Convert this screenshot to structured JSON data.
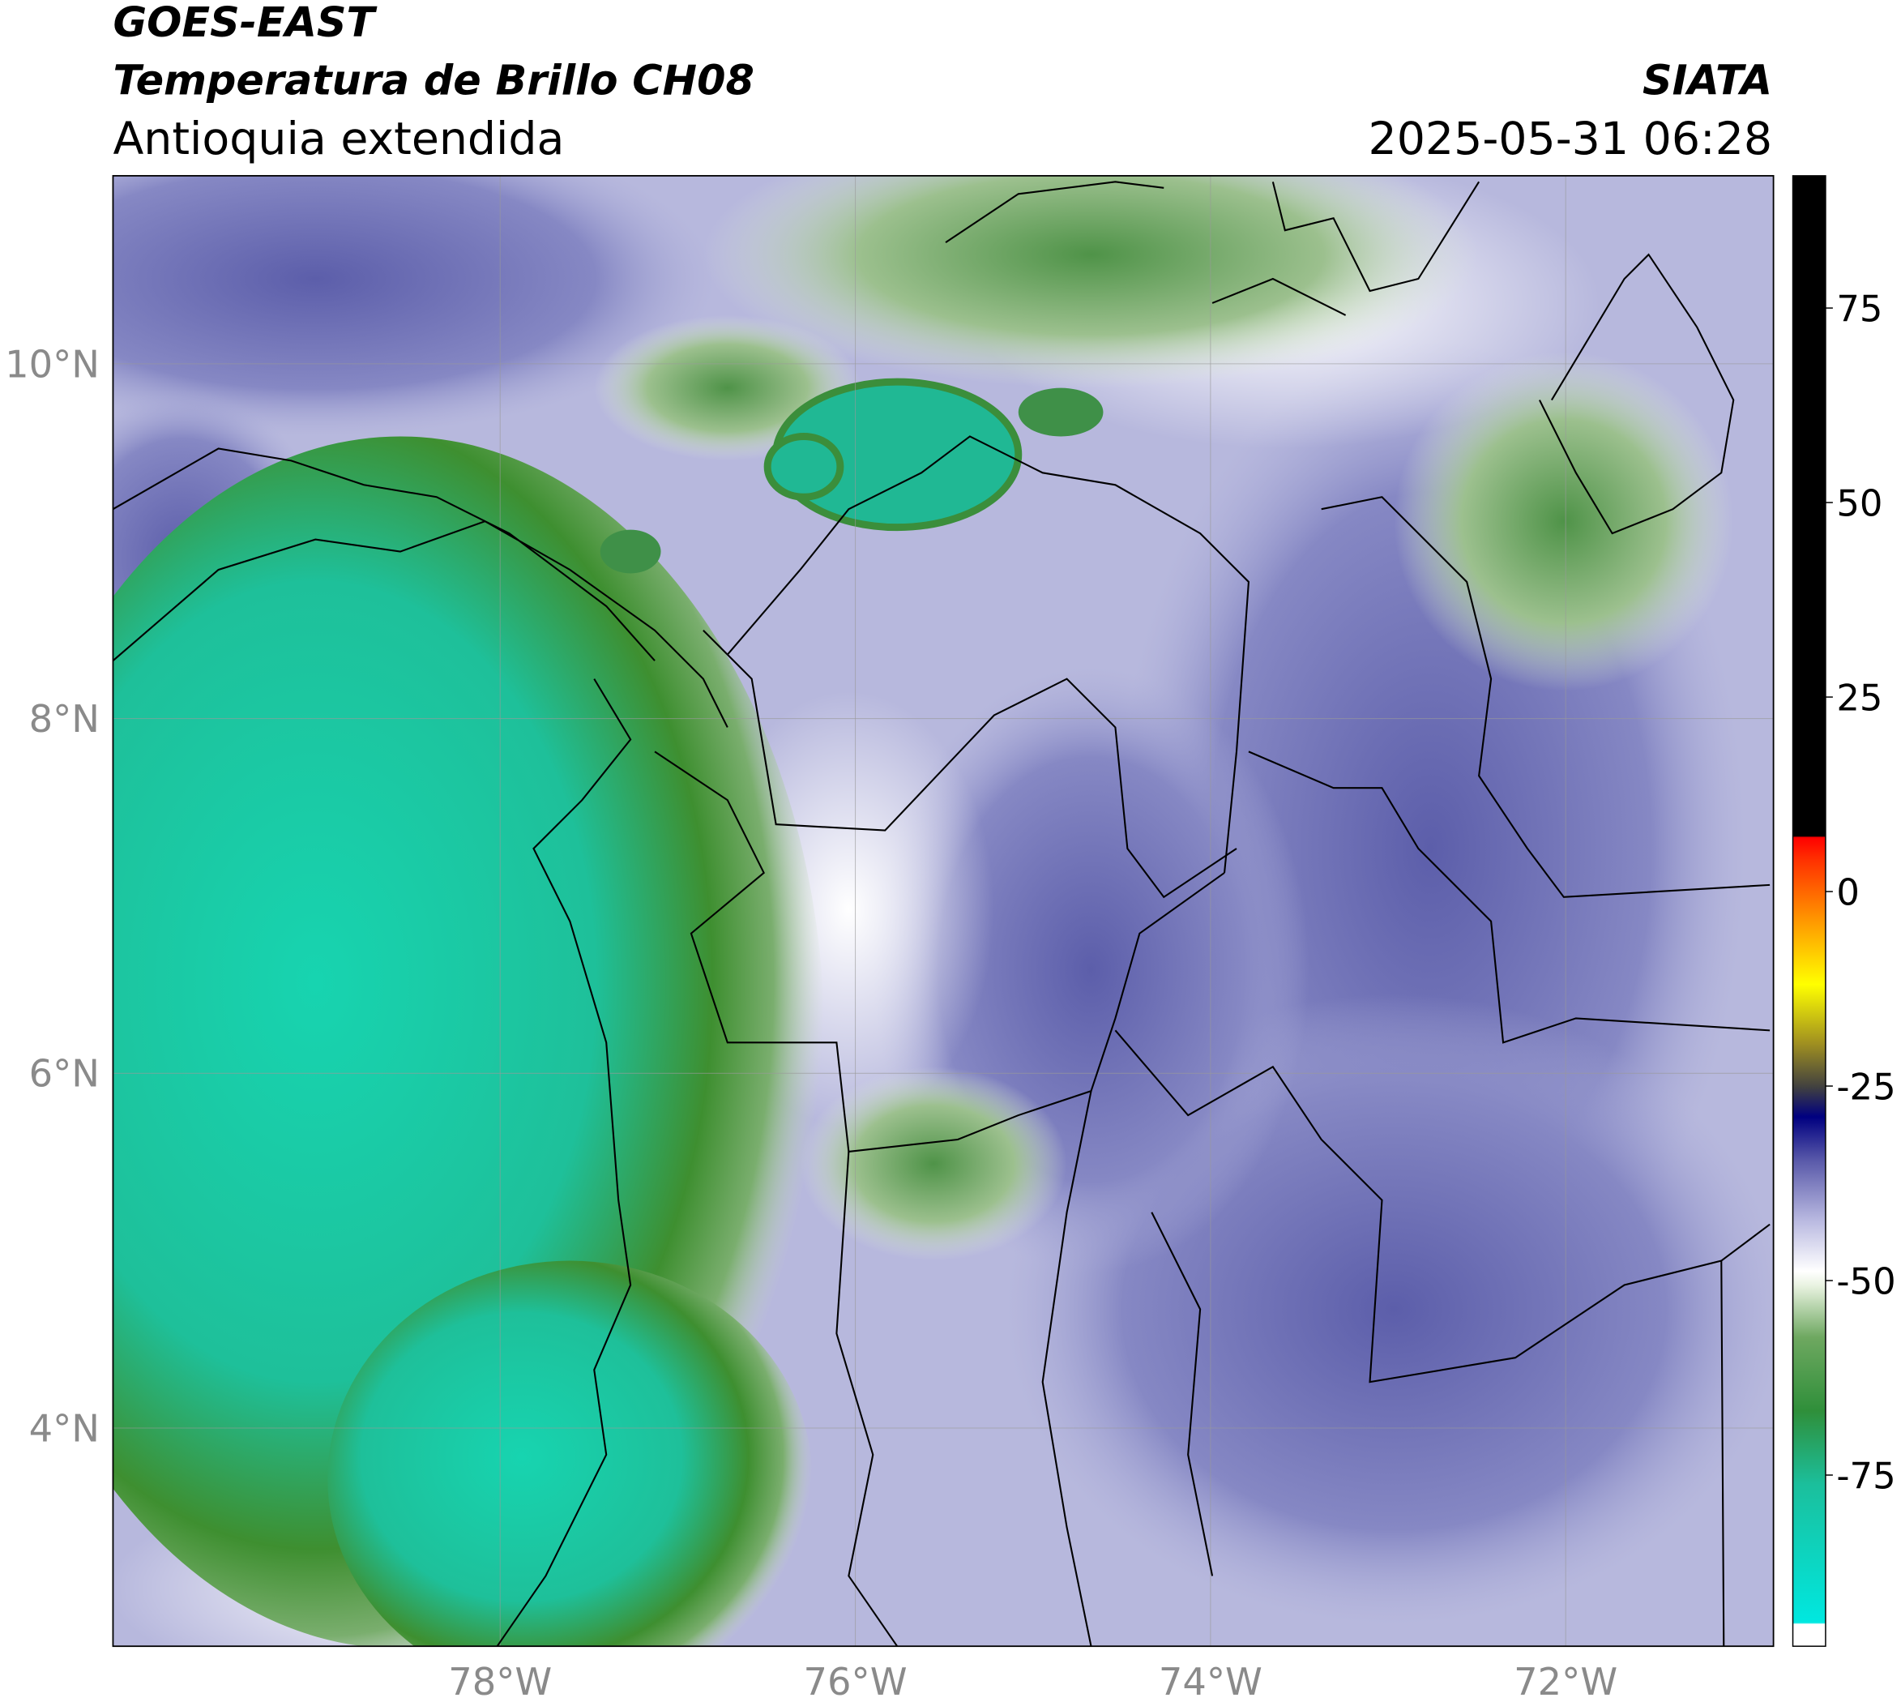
{
  "header": {
    "title": "GOES-EAST",
    "subtitle": "Temperatura de Brillo CH08",
    "region": "Antioquia extendida",
    "source": "SIATA",
    "timestamp": "2025-05-31 06:28"
  },
  "map": {
    "xlim": [
      -80.18,
      -70.83
    ],
    "ylim": [
      2.77,
      11.06
    ],
    "xticks": [
      {
        "value": -78,
        "label": "78°W"
      },
      {
        "value": -76,
        "label": "76°W"
      },
      {
        "value": -74,
        "label": "74°W"
      },
      {
        "value": -72,
        "label": "72°W"
      }
    ],
    "yticks": [
      {
        "value": 10,
        "label": "10°N"
      },
      {
        "value": 8,
        "label": "8°N"
      },
      {
        "value": 6,
        "label": "6°N"
      },
      {
        "value": 4,
        "label": "4°N"
      }
    ],
    "grid": true
  },
  "colorbar": {
    "range": [
      -97,
      92
    ],
    "ticks": [
      75,
      50,
      25,
      0,
      -25,
      -50,
      -75
    ]
  }
}
